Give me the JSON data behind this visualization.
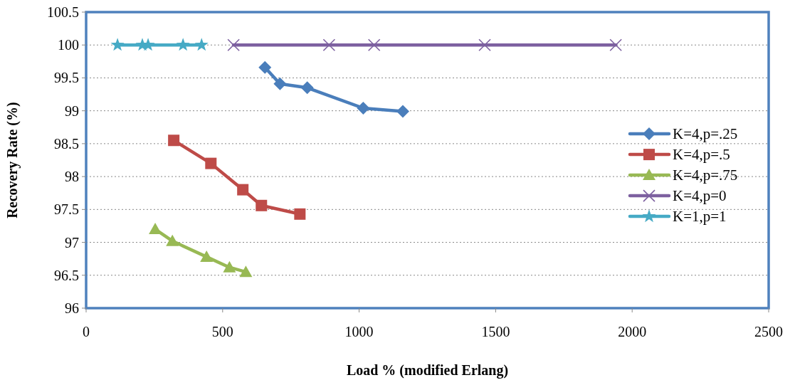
{
  "chart_data": {
    "type": "line",
    "xlabel": "Load % (modified Erlang)",
    "ylabel": "Recovery Rate (%)",
    "xlim": [
      0,
      2500
    ],
    "xticks": [
      0,
      500,
      1000,
      1500,
      2000,
      2500
    ],
    "ylim": [
      96,
      100.5
    ],
    "yticks": [
      96,
      96.5,
      97,
      97.5,
      98,
      98.5,
      99,
      99.5,
      100,
      100.5
    ],
    "grid": "y",
    "legend": "right",
    "line_style": "solid",
    "series": [
      {
        "name": "K=4,p=.25",
        "color": "#4a7ebb",
        "marker": "diamond",
        "x": [
          655,
          710,
          810,
          1015,
          1160
        ],
        "values": [
          99.66,
          99.41,
          99.35,
          99.04,
          98.99
        ]
      },
      {
        "name": "K=4,p=.5",
        "color": "#be4b48",
        "marker": "square",
        "x": [
          321,
          457,
          574,
          642,
          783
        ],
        "values": [
          98.55,
          98.2,
          97.8,
          97.56,
          97.43
        ]
      },
      {
        "name": "K=4,p=.75",
        "color": "#98b954",
        "marker": "triangle",
        "x": [
          253,
          316,
          441,
          525,
          585
        ],
        "values": [
          97.2,
          97.02,
          96.78,
          96.62,
          96.55
        ]
      },
      {
        "name": "K=4,p=0",
        "color": "#7d60a0",
        "marker": "cross",
        "x": [
          540,
          890,
          1055,
          1460,
          1940
        ],
        "values": [
          100,
          100,
          100,
          100,
          100
        ]
      },
      {
        "name": "K=1,p=1",
        "color": "#46aac5",
        "marker": "star",
        "x": [
          115,
          206,
          227,
          355,
          423
        ],
        "values": [
          100,
          100,
          100,
          100,
          100
        ]
      }
    ]
  }
}
